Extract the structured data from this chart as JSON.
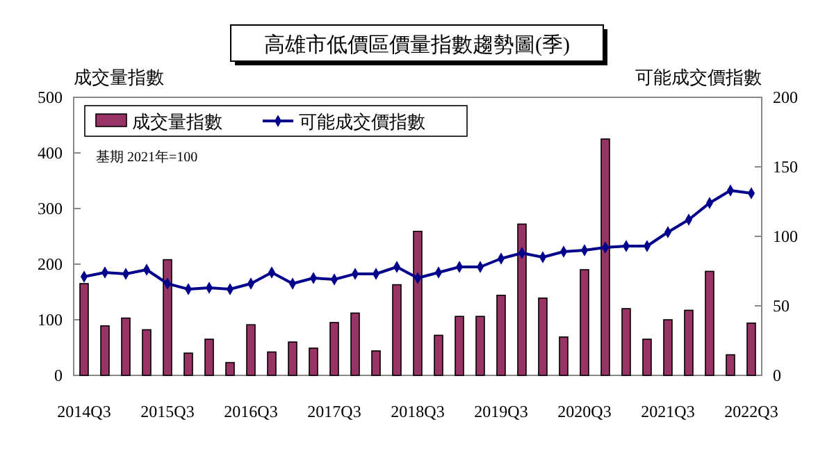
{
  "chart_data": {
    "type": "bar",
    "title": "高雄市低價區價量指數趨勢圖(季)",
    "ylabel": "成交量指數",
    "y2label": "可能成交價指數",
    "categories": [
      "2014Q3",
      null,
      null,
      null,
      "2015Q3",
      null,
      null,
      null,
      "2016Q3",
      null,
      null,
      null,
      "2017Q3",
      null,
      null,
      null,
      "2018Q3",
      null,
      null,
      null,
      "2019Q3",
      null,
      null,
      null,
      "2020Q3",
      null,
      null,
      null,
      "2021Q3",
      null,
      null,
      null,
      "2022Q3"
    ],
    "series": [
      {
        "name": "成交量指數",
        "color": "#993366",
        "values": [
          165,
          89,
          103,
          82,
          208,
          40,
          65,
          23,
          91,
          42,
          60,
          49,
          95,
          112,
          44,
          163,
          259,
          72,
          106,
          106,
          144,
          272,
          139,
          69,
          190,
          425,
          120,
          65,
          100,
          117,
          187,
          37,
          94
        ]
      },
      {
        "name": "可能成交價指數",
        "type": "line",
        "axis": "y2",
        "color": "#00008b",
        "marker": "diamond",
        "values": [
          71,
          74,
          73,
          76,
          66,
          62,
          63,
          62,
          66,
          74,
          66,
          70,
          69,
          73,
          73,
          78,
          70,
          74,
          78,
          78,
          84,
          88,
          85,
          89,
          90,
          92,
          93,
          93,
          103,
          112,
          124,
          133,
          131
        ]
      }
    ],
    "ylim": [
      0,
      500
    ],
    "yticks": [
      0,
      100,
      200,
      300,
      400,
      500
    ],
    "y2lim": [
      0,
      200
    ],
    "y2ticks": [
      0,
      50,
      100,
      150,
      200
    ],
    "legend": "top left",
    "grid": false,
    "annotations": [
      "基期 2021年=100"
    ]
  }
}
